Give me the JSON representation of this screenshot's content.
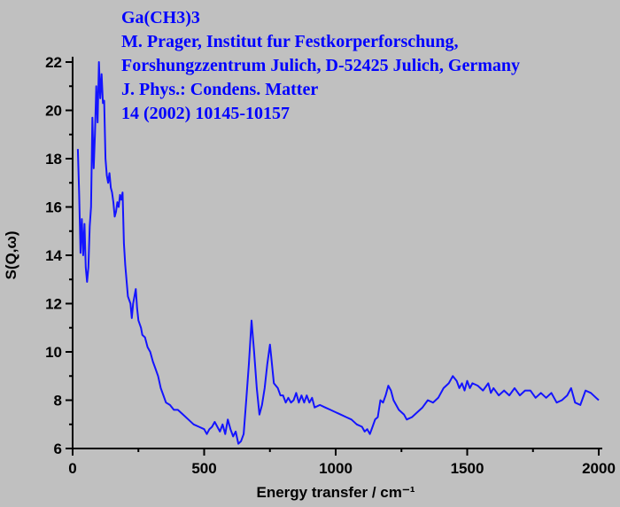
{
  "chart_data": {
    "type": "line",
    "title": "Ga(CH3)3",
    "annotations": [
      "M. Prager,  Institut fur Festkorperforschung,",
      "Forshungzzentrum Julich, D-52425 Julich, Germany",
      "J. Phys.: Condens. Matter",
      "14 (2002) 10145-10157"
    ],
    "xlabel": "Energy transfer / cm⁻¹",
    "ylabel": "S(Q,ω)",
    "xlim": [
      0,
      2000
    ],
    "ylim": [
      6,
      22
    ],
    "xticks": [
      0,
      500,
      1000,
      1500,
      2000
    ],
    "yticks": [
      6,
      8,
      10,
      12,
      14,
      16,
      18,
      20,
      22
    ],
    "xminorticks": [
      250,
      750,
      1250,
      1750
    ],
    "yminorticks": [
      7,
      9,
      11,
      13,
      15,
      17,
      19,
      21
    ],
    "color": "#1414ff",
    "x": [
      20,
      25,
      30,
      35,
      40,
      45,
      50,
      55,
      60,
      65,
      70,
      75,
      80,
      85,
      90,
      95,
      100,
      105,
      110,
      115,
      120,
      125,
      130,
      135,
      140,
      145,
      150,
      155,
      160,
      165,
      170,
      175,
      180,
      185,
      190,
      195,
      200,
      210,
      220,
      225,
      230,
      240,
      245,
      250,
      260,
      265,
      275,
      285,
      295,
      305,
      315,
      325,
      335,
      345,
      355,
      370,
      385,
      400,
      420,
      440,
      460,
      480,
      500,
      510,
      520,
      530,
      540,
      550,
      560,
      570,
      580,
      590,
      600,
      610,
      620,
      630,
      640,
      650,
      660,
      670,
      680,
      690,
      700,
      710,
      720,
      730,
      740,
      750,
      755,
      765,
      780,
      790,
      800,
      810,
      820,
      830,
      840,
      850,
      860,
      870,
      880,
      890,
      900,
      910,
      920,
      940,
      960,
      980,
      1000,
      1020,
      1040,
      1060,
      1080,
      1100,
      1110,
      1120,
      1130,
      1140,
      1150,
      1160,
      1170,
      1180,
      1190,
      1200,
      1210,
      1220,
      1240,
      1260,
      1270,
      1290,
      1310,
      1330,
      1350,
      1370,
      1390,
      1410,
      1430,
      1445,
      1460,
      1470,
      1480,
      1490,
      1500,
      1510,
      1520,
      1540,
      1560,
      1580,
      1590,
      1600,
      1620,
      1640,
      1660,
      1680,
      1700,
      1720,
      1740,
      1760,
      1780,
      1800,
      1820,
      1840,
      1860,
      1880,
      1895,
      1910,
      1930,
      1950,
      1970,
      1990,
      2000
    ],
    "values": [
      18.4,
      16.5,
      14.1,
      15.5,
      14.0,
      15.3,
      13.5,
      12.9,
      13.5,
      15.2,
      16.0,
      19.7,
      17.6,
      19.0,
      21.0,
      19.5,
      22.0,
      20.5,
      21.5,
      20.3,
      20.4,
      18.0,
      17.3,
      17.0,
      17.4,
      16.8,
      16.6,
      16.2,
      15.6,
      15.8,
      16.2,
      16.0,
      16.5,
      16.3,
      16.6,
      14.5,
      13.6,
      12.3,
      12.0,
      11.4,
      12.0,
      12.6,
      11.8,
      11.3,
      11.0,
      10.7,
      10.6,
      10.2,
      10.0,
      9.6,
      9.3,
      9.0,
      8.5,
      8.2,
      7.9,
      7.8,
      7.6,
      7.6,
      7.4,
      7.2,
      7.0,
      6.9,
      6.8,
      6.6,
      6.8,
      6.9,
      7.1,
      6.9,
      6.7,
      7.0,
      6.6,
      7.2,
      6.8,
      6.5,
      6.7,
      6.2,
      6.3,
      6.6,
      8.0,
      9.5,
      11.3,
      10.0,
      8.5,
      7.4,
      7.8,
      8.5,
      9.5,
      10.3,
      9.8,
      8.7,
      8.5,
      8.2,
      8.2,
      7.9,
      8.1,
      7.9,
      8.0,
      8.3,
      7.9,
      8.2,
      7.9,
      8.2,
      7.9,
      8.1,
      7.7,
      7.8,
      7.7,
      7.6,
      7.5,
      7.4,
      7.3,
      7.2,
      7.0,
      6.9,
      6.7,
      6.8,
      6.6,
      6.9,
      7.2,
      7.3,
      8.0,
      7.9,
      8.2,
      8.6,
      8.4,
      8.0,
      7.6,
      7.4,
      7.2,
      7.3,
      7.5,
      7.7,
      8.0,
      7.9,
      8.1,
      8.5,
      8.7,
      9.0,
      8.8,
      8.5,
      8.7,
      8.4,
      8.8,
      8.5,
      8.7,
      8.6,
      8.4,
      8.7,
      8.3,
      8.5,
      8.2,
      8.4,
      8.2,
      8.5,
      8.2,
      8.4,
      8.4,
      8.1,
      8.3,
      8.1,
      8.3,
      7.9,
      8.0,
      8.2,
      8.5,
      7.9,
      7.8,
      8.4,
      8.3,
      8.1,
      8.0
    ]
  }
}
